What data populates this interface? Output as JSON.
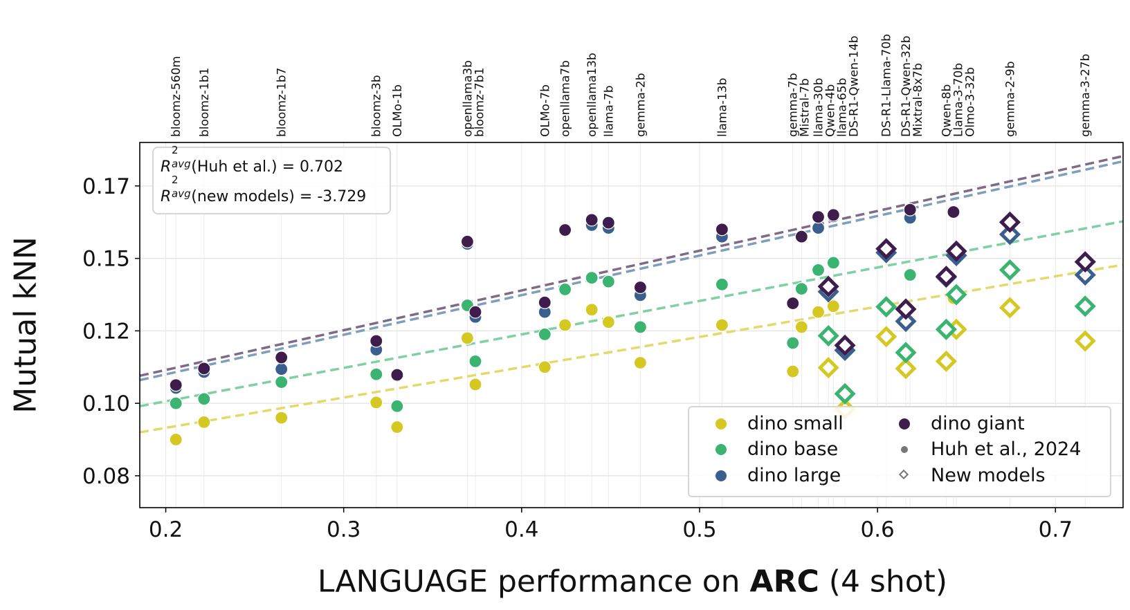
{
  "chart_data": {
    "type": "scatter",
    "xlabel_parts": {
      "prefix": "LANGUAGE performance on ",
      "bold": "ARC",
      "suffix": " (4 shot)"
    },
    "ylabel": "Mutual kNN",
    "xlim": [
      0.1854,
      0.738
    ],
    "ylim": [
      0.064,
      0.19
    ],
    "x_ticks": [
      0.2,
      0.3,
      0.4,
      0.5,
      0.6,
      0.7
    ],
    "x_tick_labels": [
      "0.2",
      "0.3",
      "0.4",
      "0.5",
      "0.6",
      "0.7"
    ],
    "y_ticks": [
      0.075,
      0.1,
      0.125,
      0.15,
      0.175
    ],
    "y_tick_labels": [
      "0.08",
      "0.10",
      "0.12",
      "0.15",
      "0.17"
    ],
    "grid": true,
    "legend_placement": "lower right",
    "series": [
      {
        "key": "small",
        "name": "dino small",
        "color": "#d5c823",
        "line_color": "#e3da6a"
      },
      {
        "key": "base",
        "name": "dino base",
        "color": "#3bb371",
        "line_color": "#7fd1a2"
      },
      {
        "key": "large",
        "name": "dino large",
        "color": "#3a5f8e",
        "line_color": "#7f9dbd"
      },
      {
        "key": "giant",
        "name": "dino giant",
        "color": "#3e1d4c",
        "line_color": "#7e6a89"
      }
    ],
    "marker_legend": [
      {
        "name": "Huh et al., 2024",
        "marker": "circle",
        "color": "#777777"
      },
      {
        "name": "New models",
        "marker": "diamond",
        "color": "#777777"
      }
    ],
    "fit_lines": [
      {
        "series": "small",
        "x": [
          0.1854,
          0.738
        ],
        "y": [
          0.09,
          0.1478
        ]
      },
      {
        "series": "base",
        "x": [
          0.1854,
          0.738
        ],
        "y": [
          0.099,
          0.1628
        ]
      },
      {
        "series": "large",
        "x": [
          0.1854,
          0.738
        ],
        "y": [
          0.108,
          0.1835
        ]
      },
      {
        "series": "giant",
        "x": [
          0.1854,
          0.738
        ],
        "y": [
          0.1095,
          0.1853
        ]
      }
    ],
    "annotation": {
      "r2_symbol": "R",
      "r2_sup": "2",
      "r2_sub": "avg",
      "line1": "(Huh et al.) = 0.702",
      "line2": "(new models) = -3.729"
    },
    "models": [
      {
        "name": "bloomz-560m",
        "group": "huh",
        "x": 0.2057,
        "small": 0.0875,
        "base": 0.1,
        "large": 0.1053,
        "giant": 0.1063
      },
      {
        "name": "bloomz-1b1",
        "group": "huh",
        "x": 0.2215,
        "small": 0.0935,
        "base": 0.1015,
        "large": 0.1108,
        "giant": 0.112
      },
      {
        "name": "bloomz-1b7",
        "group": "huh",
        "x": 0.265,
        "small": 0.095,
        "base": 0.1073,
        "large": 0.1118,
        "giant": 0.1158
      },
      {
        "name": "bloomz-3b",
        "group": "huh",
        "x": 0.3183,
        "small": 0.1003,
        "base": 0.11,
        "large": 0.1185,
        "giant": 0.1215
      },
      {
        "name": "OLMo-1b",
        "group": "huh",
        "x": 0.33,
        "small": 0.0918,
        "base": 0.099,
        "large": 0.1095,
        "giant": 0.1098
      },
      {
        "name": "openllama3b",
        "group": "huh",
        "x": 0.3695,
        "small": 0.1225,
        "base": 0.1338,
        "large": 0.155,
        "giant": 0.1558
      },
      {
        "name": "bloomz-7b1",
        "group": "huh",
        "x": 0.374,
        "small": 0.1065,
        "base": 0.1145,
        "large": 0.1298,
        "giant": 0.1315
      },
      {
        "name": "OLMo-7b",
        "group": "huh",
        "x": 0.413,
        "small": 0.1125,
        "base": 0.1238,
        "large": 0.1315,
        "giant": 0.1348
      },
      {
        "name": "openllama7b",
        "group": "huh",
        "x": 0.4244,
        "small": 0.127,
        "base": 0.1393,
        "large": 0.1595,
        "giant": 0.1598
      },
      {
        "name": "openllama13b",
        "group": "huh",
        "x": 0.4394,
        "small": 0.1323,
        "base": 0.1433,
        "large": 0.1615,
        "giant": 0.1633
      },
      {
        "name": "llama-7b",
        "group": "huh",
        "x": 0.4488,
        "small": 0.128,
        "base": 0.142,
        "large": 0.1605,
        "giant": 0.1623
      },
      {
        "name": "gemma-2b",
        "group": "huh",
        "x": 0.4667,
        "small": 0.114,
        "base": 0.1263,
        "large": 0.1373,
        "giant": 0.14
      },
      {
        "name": "llama-13b",
        "group": "huh",
        "x": 0.5126,
        "small": 0.127,
        "base": 0.141,
        "large": 0.1575,
        "giant": 0.16
      },
      {
        "name": "gemma-7b",
        "group": "huh",
        "x": 0.5524,
        "small": 0.111,
        "base": 0.1208,
        "large": 0.1343,
        "giant": 0.1345
      },
      {
        "name": "Mistral-7b",
        "group": "huh",
        "x": 0.5573,
        "small": 0.1263,
        "base": 0.1395,
        "large": null,
        "giant": 0.1575
      },
      {
        "name": "llama-30b",
        "group": "huh",
        "x": 0.5667,
        "small": 0.1315,
        "base": 0.146,
        "large": 0.1605,
        "giant": 0.1643
      },
      {
        "name": "Qwen-4b",
        "group": "new",
        "x": 0.5724,
        "small": 0.1123,
        "base": 0.1233,
        "large": 0.1385,
        "giant": 0.1403
      },
      {
        "name": "llama-65b",
        "group": "huh",
        "x": 0.5752,
        "small": 0.1335,
        "base": 0.1485,
        "large": 0.1645,
        "giant": 0.165
      },
      {
        "name": "DS-R1-Qwen-14b",
        "group": "new",
        "x": 0.5817,
        "small": 0.098,
        "base": 0.1033,
        "large": 0.1183,
        "giant": 0.12
      },
      {
        "name": "DS-R1-Llama-70b",
        "group": "new",
        "x": 0.6049,
        "small": 0.123,
        "base": 0.1333,
        "large": 0.152,
        "giant": 0.1533
      },
      {
        "name": "DS-R1-Qwen-32b",
        "group": "new",
        "x": 0.6159,
        "small": 0.112,
        "base": 0.1175,
        "large": 0.1283,
        "giant": 0.1325
      },
      {
        "name": "Mixtral-8x7b",
        "group": "huh",
        "x": 0.6183,
        "small": null,
        "base": 0.1443,
        "large": 0.164,
        "giant": 0.1668
      },
      {
        "name": "Qwen-8b",
        "group": "new",
        "x": 0.6386,
        "small": 0.1145,
        "base": 0.1255,
        "large": 0.1435,
        "giant": 0.1438
      },
      {
        "name": "Llama-3-70b",
        "group": "huh",
        "x": 0.6427,
        "small": 0.1363,
        "base": 0.151,
        "large": null,
        "giant": 0.166
      },
      {
        "name": "Olmo-3-32b",
        "group": "new",
        "x": 0.6443,
        "small": 0.1255,
        "base": 0.1375,
        "large": 0.151,
        "giant": 0.1525
      },
      {
        "name": "gemma-2-9b",
        "group": "new",
        "x": 0.6744,
        "small": 0.133,
        "base": 0.146,
        "large": 0.1583,
        "giant": 0.1625
      },
      {
        "name": "gemma-3-27b",
        "group": "new",
        "x": 0.7167,
        "small": 0.1215,
        "base": 0.1335,
        "large": 0.1443,
        "giant": 0.1488
      }
    ]
  }
}
